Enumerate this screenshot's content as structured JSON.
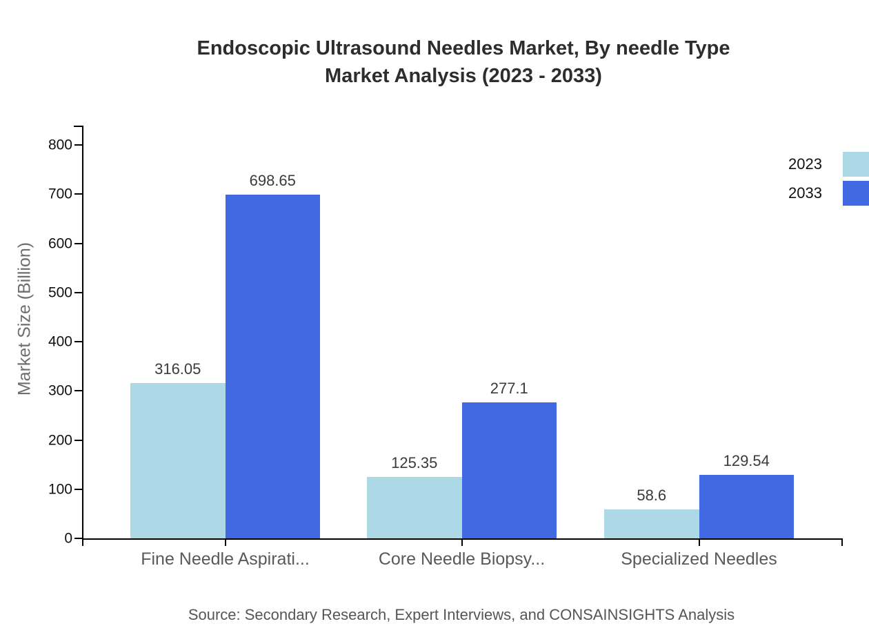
{
  "title": {
    "line1": "Endoscopic Ultrasound Needles Market, By needle Type",
    "line2": "Market Analysis (2023 - 2033)"
  },
  "source": "Source: Secondary Research, Expert Interviews, and CONSAINSIGHTS Analysis",
  "chart_data": {
    "type": "bar",
    "title": "Endoscopic Ultrasound Needles Market, By needle Type Market Analysis (2023 - 2033)",
    "categories": [
      "Fine Needle Aspirati...",
      "Core Needle Biopsy...",
      "Specialized Needles"
    ],
    "series": [
      {
        "name": "2023",
        "color": "#add8e6",
        "values": [
          316.05,
          125.35,
          58.6
        ]
      },
      {
        "name": "2033",
        "color": "#4169e1",
        "values": [
          698.65,
          277.1,
          129.54
        ]
      }
    ],
    "xlabel": "",
    "ylabel": "Market Size (Billion)",
    "ylim": [
      0,
      800
    ],
    "yticks": [
      0,
      100,
      200,
      300,
      400,
      500,
      600,
      700,
      800
    ],
    "grid": false,
    "legend_position": "top-right",
    "colors": {
      "axis": "#000000",
      "title_text": "#2d2d2d",
      "value_label_text": "#3a3a3a",
      "muted_text": "#595959"
    }
  }
}
